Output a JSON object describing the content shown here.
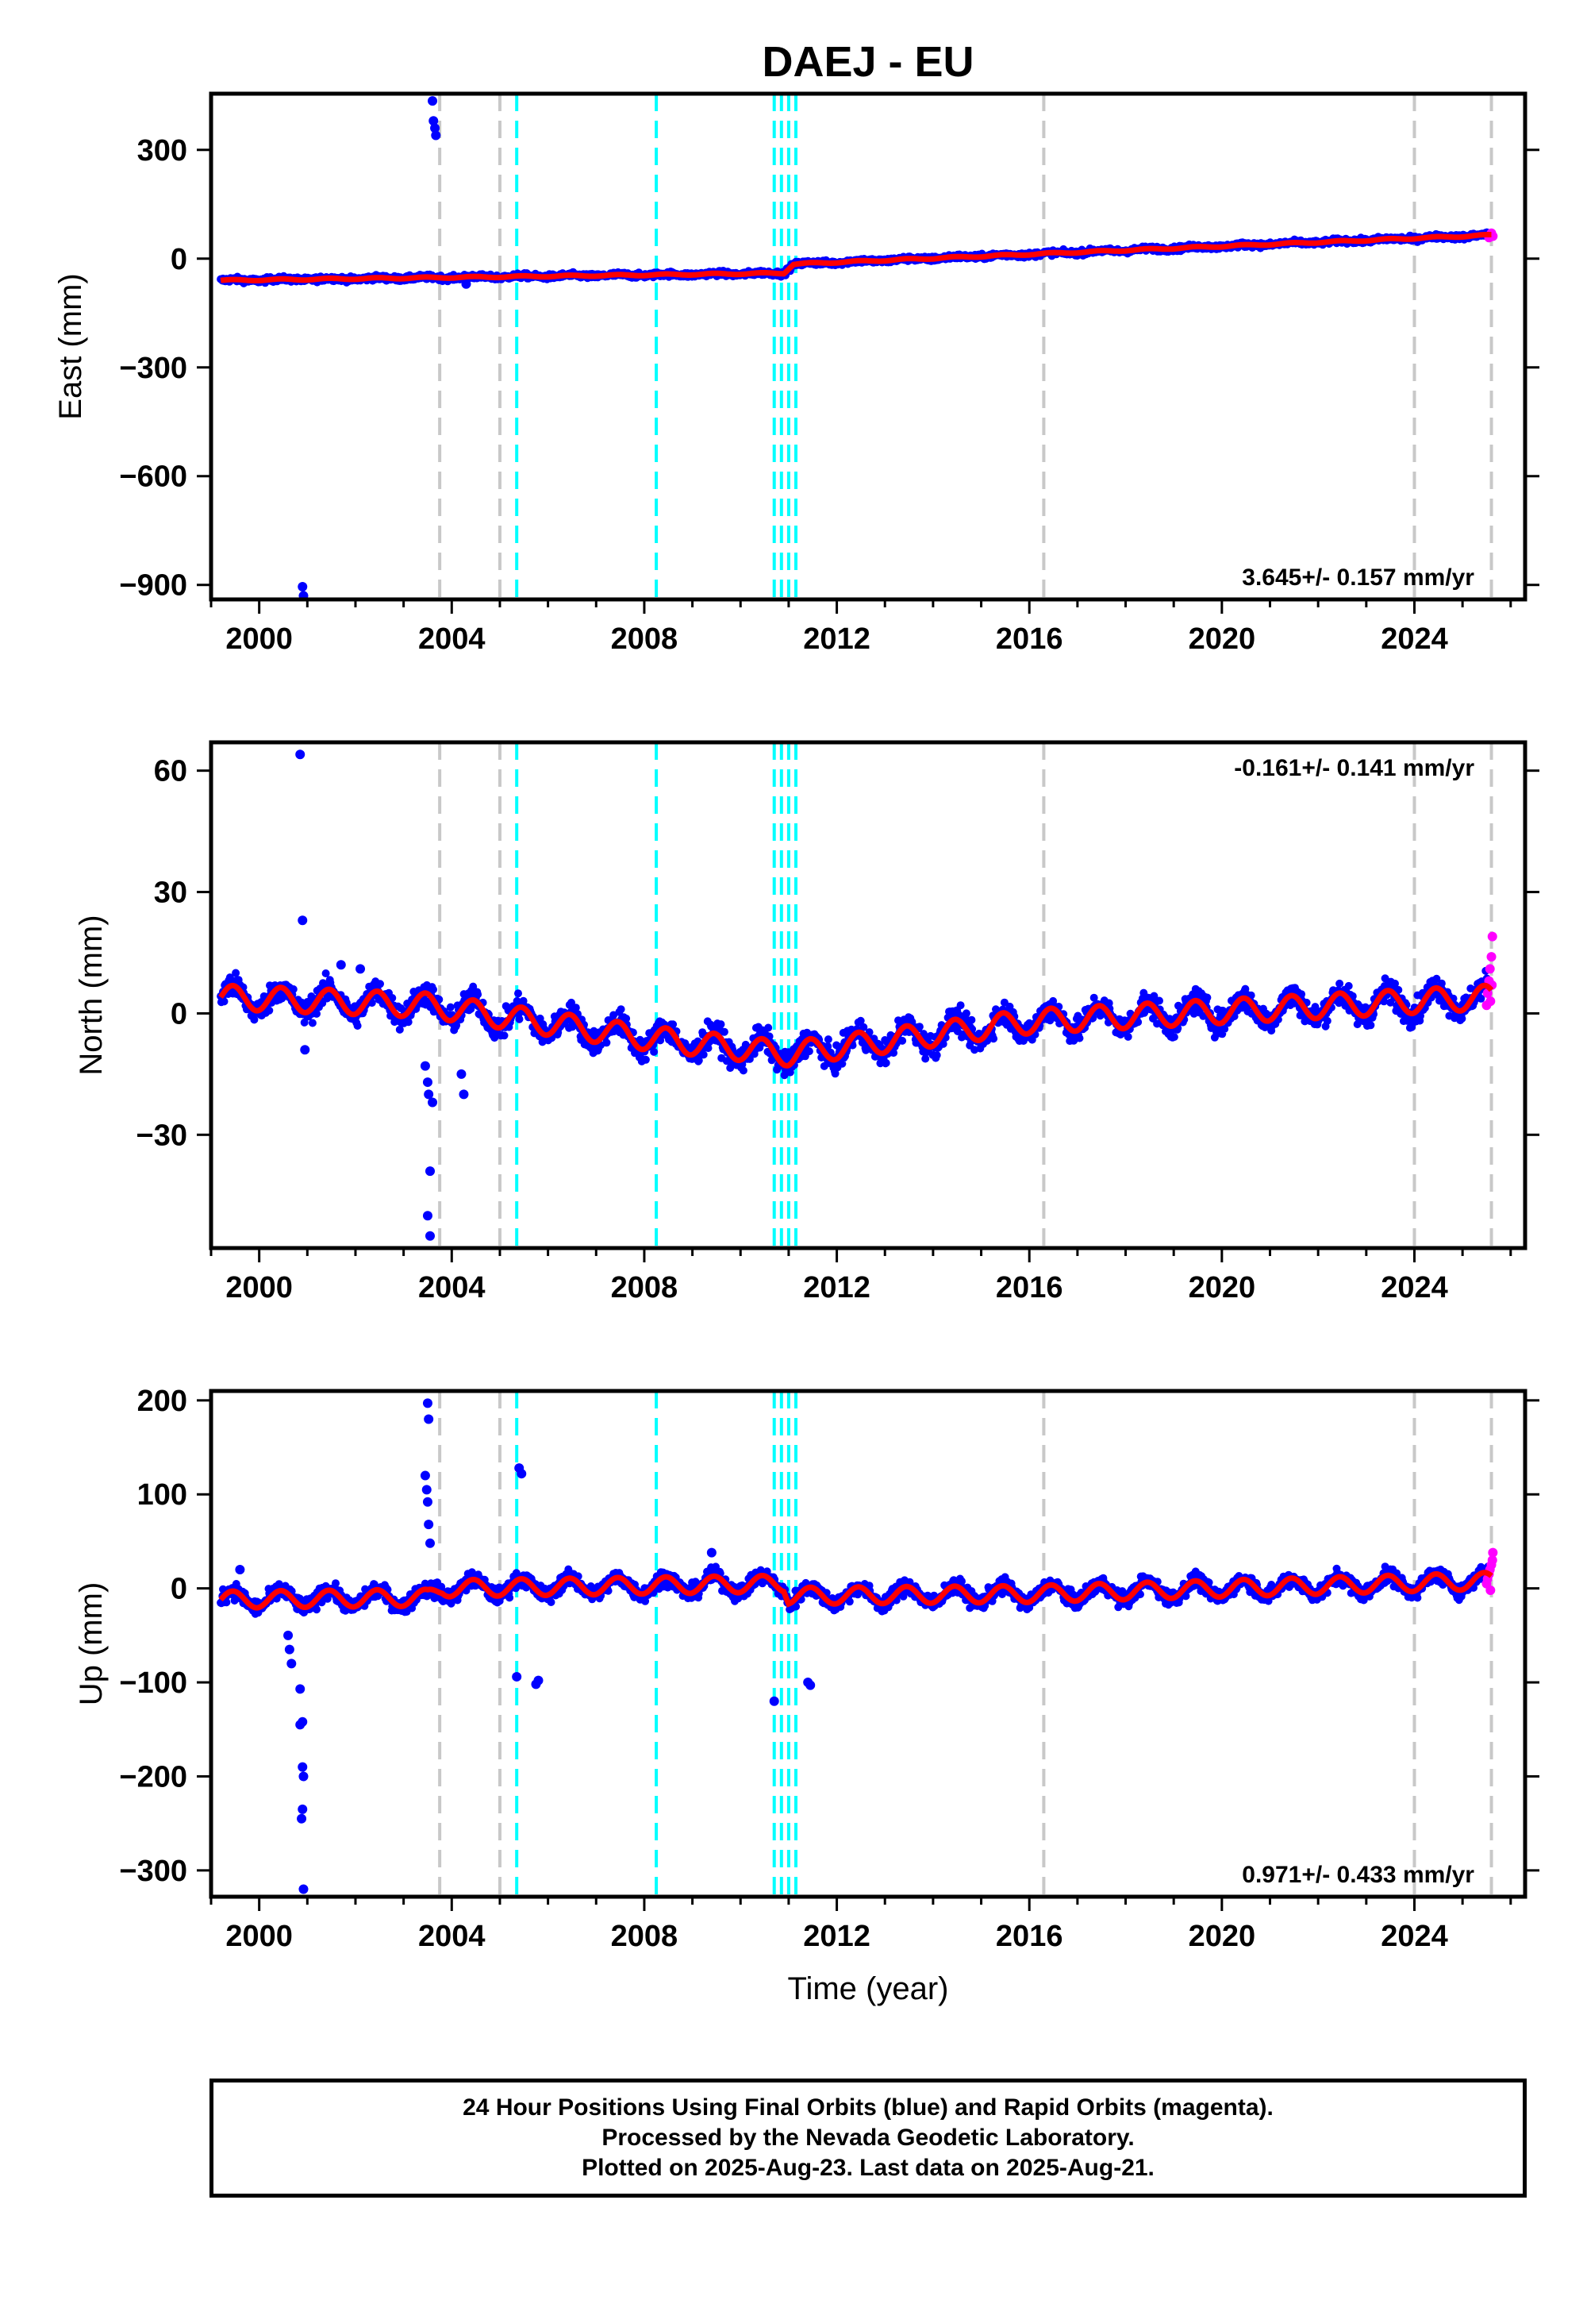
{
  "chart_data": {
    "type": "scatter",
    "title": "DAEJ - EU",
    "xlabel": "Time (year)",
    "xlim": [
      1999.0,
      2026.3
    ],
    "x_ticks": [
      2000,
      2004,
      2008,
      2012,
      2016,
      2020,
      2024
    ],
    "x_minor_step": 1,
    "steps_equipment": [
      2003.75,
      2005.0,
      2016.3,
      2024.0,
      2025.6
    ],
    "steps_earthquake": [
      2005.35,
      2008.25,
      2010.7,
      2010.85,
      2011.0,
      2011.15
    ],
    "colors": {
      "final": "#0000ff",
      "rapid": "#ff00ff",
      "model": "#ff0000",
      "equipment_step": "#c8c8c8",
      "earthquake_step": "#00ffff"
    },
    "panels": [
      {
        "component": "East",
        "ylabel": "East (mm)",
        "ylim": [
          -940,
          455
        ],
        "y_ticks": [
          -900,
          -600,
          -300,
          0,
          300
        ],
        "y_tick_labels": [
          "−900",
          "−600",
          "−300",
          "0",
          "300"
        ],
        "rate_text": "3.645+/- 0.157 mm/yr",
        "rate_position": "bottom-right",
        "trend": [
          [
            1999.2,
            -60
          ],
          [
            2010.9,
            -40
          ],
          [
            2011.1,
            -15
          ],
          [
            2025.6,
            65
          ]
        ],
        "seasonal_amplitude": 2,
        "noise": 5,
        "outliers": [
          [
            2003.6,
            435
          ],
          [
            2003.62,
            380
          ],
          [
            2003.65,
            360
          ],
          [
            2003.67,
            340
          ],
          [
            2000.9,
            -905
          ],
          [
            2000.92,
            -930
          ],
          [
            2004.3,
            -70
          ]
        ],
        "rapid": [
          [
            2025.55,
            58
          ],
          [
            2025.58,
            66
          ],
          [
            2025.6,
            70
          ],
          [
            2025.63,
            62
          ]
        ]
      },
      {
        "component": "North",
        "ylabel": "North (mm)",
        "ylim": [
          -58,
          67
        ],
        "y_ticks": [
          -30,
          0,
          30,
          60
        ],
        "y_tick_labels": [
          "−30",
          "0",
          "30",
          "60"
        ],
        "rate_text": "-0.161+/- 0.141 mm/yr",
        "rate_position": "top-right",
        "trend": [
          [
            1999.2,
            4
          ],
          [
            2003.5,
            2
          ],
          [
            2008.0,
            -6
          ],
          [
            2011.0,
            -10
          ],
          [
            2016.0,
            -2
          ],
          [
            2025.6,
            4
          ]
        ],
        "seasonal_amplitude": 3,
        "noise": 2.2,
        "outliers": [
          [
            2000.85,
            64
          ],
          [
            2000.9,
            23
          ],
          [
            2000.95,
            -9
          ],
          [
            2003.45,
            -13
          ],
          [
            2003.5,
            -17
          ],
          [
            2003.52,
            -20
          ],
          [
            2003.6,
            -22
          ],
          [
            2003.55,
            -39
          ],
          [
            2003.5,
            -50
          ],
          [
            2003.55,
            -55
          ],
          [
            2004.2,
            -15
          ],
          [
            2004.25,
            -20
          ],
          [
            2001.7,
            12
          ],
          [
            2002.1,
            11
          ]
        ],
        "rapid": [
          [
            2025.5,
            2
          ],
          [
            2025.52,
            5
          ],
          [
            2025.55,
            8
          ],
          [
            2025.57,
            11
          ],
          [
            2025.6,
            14
          ],
          [
            2025.62,
            19
          ],
          [
            2025.58,
            3
          ],
          [
            2025.61,
            7
          ]
        ]
      },
      {
        "component": "Up",
        "ylabel": "Up (mm)",
        "ylim": [
          -328,
          210
        ],
        "y_ticks": [
          -300,
          -200,
          -100,
          0,
          100,
          200
        ],
        "y_tick_labels": [
          "−300",
          "−200",
          "−100",
          "0",
          "100",
          "200"
        ],
        "rate_text": "0.971+/- 0.433 mm/yr",
        "rate_position": "bottom-right",
        "trend": [
          [
            1999.2,
            -12
          ],
          [
            2003.5,
            -10
          ],
          [
            2003.8,
            0
          ],
          [
            2010.9,
            5
          ],
          [
            2011.0,
            -8
          ],
          [
            2016.0,
            -6
          ],
          [
            2025.6,
            8
          ]
        ],
        "seasonal_amplitude": 9,
        "noise": 6,
        "outliers": [
          [
            2003.5,
            197
          ],
          [
            2003.52,
            180
          ],
          [
            2003.45,
            120
          ],
          [
            2003.48,
            105
          ],
          [
            2003.5,
            92
          ],
          [
            2003.52,
            68
          ],
          [
            2003.55,
            48
          ],
          [
            2000.6,
            -50
          ],
          [
            2000.63,
            -65
          ],
          [
            2000.67,
            -80
          ],
          [
            2000.85,
            -107
          ],
          [
            2000.9,
            -142
          ],
          [
            2000.85,
            -145
          ],
          [
            2000.9,
            -190
          ],
          [
            2000.92,
            -200
          ],
          [
            2000.9,
            -235
          ],
          [
            2000.88,
            -245
          ],
          [
            2000.92,
            -320
          ],
          [
            2005.4,
            128
          ],
          [
            2005.45,
            122
          ],
          [
            2005.35,
            -94
          ],
          [
            2005.8,
            -98
          ],
          [
            2005.75,
            -102
          ],
          [
            2010.7,
            -120
          ],
          [
            2011.4,
            -100
          ],
          [
            2011.45,
            -103
          ],
          [
            2009.4,
            38
          ],
          [
            1999.6,
            20
          ]
        ],
        "rapid": [
          [
            2025.5,
            5
          ],
          [
            2025.52,
            10
          ],
          [
            2025.55,
            15
          ],
          [
            2025.57,
            20
          ],
          [
            2025.6,
            25
          ],
          [
            2025.62,
            30
          ],
          [
            2025.63,
            38
          ],
          [
            2025.58,
            -2
          ]
        ]
      }
    ]
  },
  "footer": {
    "line1": "24 Hour Positions Using Final Orbits (blue) and Rapid Orbits (magenta).",
    "line2": "Processed by the Nevada Geodetic Laboratory.",
    "line3": "Plotted on 2025-Aug-23. Last data on 2025-Aug-21."
  }
}
